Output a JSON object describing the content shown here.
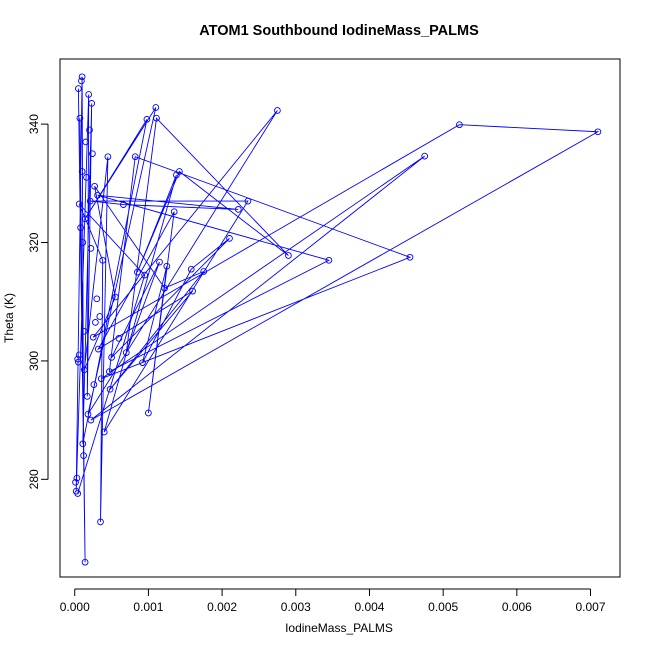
{
  "chart_data": {
    "type": "line",
    "title": "ATOM1 Southbound IodineMass_PALMS",
    "xlabel": "IodineMass_PALMS",
    "ylabel": "Theta (K)",
    "x_ticks": [
      "0.000",
      "0.001",
      "0.002",
      "0.003",
      "0.004",
      "0.005",
      "0.006",
      "0.007"
    ],
    "x_tick_values": [
      0,
      0.001,
      0.002,
      0.003,
      0.004,
      0.005,
      0.006,
      0.007
    ],
    "y_ticks": [
      "280",
      "300",
      "320",
      "340"
    ],
    "y_tick_values": [
      280,
      300,
      320,
      340
    ],
    "xlim": [
      -0.0002,
      0.0074
    ],
    "ylim": [
      263.5,
      351
    ],
    "grid": false,
    "legend": "none",
    "colors": {
      "series": "#0000ff",
      "axis": "#000000",
      "background": "#ffffff"
    },
    "series": [
      {
        "marker": "open-circle",
        "line": true,
        "points": [
          [
            2e-05,
            278.0
          ],
          [
            1e-05,
            279.5
          ],
          [
            3e-05,
            280.2
          ],
          [
            4e-05,
            277.6
          ],
          [
            5e-05,
            299.8
          ],
          [
            4e-05,
            300.3
          ],
          [
            6e-05,
            301.0
          ],
          [
            5e-05,
            346.0
          ],
          [
            7e-05,
            341.0
          ],
          [
            6e-05,
            326.5
          ],
          [
            8e-05,
            322.5
          ],
          [
            0.0001,
            348.0
          ],
          [
            9e-05,
            347.3
          ],
          [
            0.00011,
            320.0
          ],
          [
            0.0001,
            332.0
          ],
          [
            0.00012,
            284.0
          ],
          [
            0.00011,
            286.0
          ],
          [
            0.00013,
            298.5
          ],
          [
            0.00013,
            305.0
          ],
          [
            0.00014,
            324.0
          ],
          [
            0.00015,
            337.0
          ],
          [
            0.00016,
            331.0
          ],
          [
            0.00014,
            266.0
          ],
          [
            0.00017,
            294.0
          ],
          [
            0.00018,
            291.0
          ],
          [
            0.00019,
            345.0
          ],
          [
            0.0002,
            339.0
          ],
          [
            0.00021,
            327.0
          ],
          [
            0.00022,
            319.0
          ],
          [
            0.00023,
            343.5
          ],
          [
            0.00024,
            335.0
          ],
          [
            0.00022,
            290.0
          ],
          [
            0.00025,
            304.0
          ],
          [
            0.00026,
            296.0
          ],
          [
            0.00027,
            329.5
          ],
          [
            0.00028,
            306.5
          ],
          [
            0.0003,
            310.5
          ],
          [
            0.00031,
            328.0
          ],
          [
            0.00032,
            302.0
          ],
          [
            0.00034,
            307.5
          ],
          [
            0.00035,
            272.8
          ],
          [
            0.00036,
            297.0
          ],
          [
            0.00038,
            317.0
          ],
          [
            0.0004,
            288.0
          ],
          [
            0.00045,
            334.5
          ],
          [
            0.00047,
            298.2
          ],
          [
            0.00048,
            295.2
          ],
          [
            0.0005,
            300.6
          ],
          [
            0.00055,
            310.8
          ],
          [
            0.0006,
            303.8
          ],
          [
            0.00066,
            326.4
          ],
          [
            0.0007,
            301.4
          ],
          [
            0.00082,
            334.5
          ],
          [
            0.00085,
            315.0
          ],
          [
            0.00092,
            299.7
          ],
          [
            0.00095,
            314.5
          ],
          [
            0.00098,
            340.8
          ],
          [
            0.001,
            291.2
          ],
          [
            0.0011,
            342.8
          ],
          [
            0.00111,
            341.0
          ],
          [
            0.00115,
            316.7
          ],
          [
            0.00122,
            312.3
          ],
          [
            0.00125,
            316.0
          ],
          [
            0.00135,
            325.2
          ],
          [
            0.00138,
            331.4
          ],
          [
            0.00142,
            332.0
          ],
          [
            0.00158,
            315.5
          ],
          [
            0.0016,
            311.8
          ],
          [
            0.00175,
            315.1
          ],
          [
            0.0021,
            320.7
          ],
          [
            0.00222,
            325.6
          ],
          [
            0.00235,
            327.0
          ],
          [
            0.00275,
            342.3
          ],
          [
            0.0029,
            317.8
          ],
          [
            0.00345,
            317.0
          ],
          [
            0.00455,
            317.5
          ],
          [
            0.00475,
            334.6
          ],
          [
            0.00522,
            339.9
          ],
          [
            0.0071,
            338.7
          ]
        ],
        "path": [
          [
            5e-05,
            346.0
          ],
          [
            0.00014,
            266.0
          ],
          [
            7e-05,
            341.0
          ],
          [
            0.00012,
            284.0
          ],
          [
            0.0001,
            348.0
          ],
          [
            2e-05,
            278.0
          ],
          [
            0.00019,
            345.0
          ],
          [
            0.00017,
            294.0
          ],
          [
            0.00023,
            343.5
          ],
          [
            0.00011,
            286.0
          ],
          [
            0.00098,
            340.8
          ],
          [
            0.00014,
            324.0
          ],
          [
            0.0011,
            342.8
          ],
          [
            0.00018,
            291.0
          ],
          [
            0.00275,
            342.3
          ],
          [
            0.00025,
            304.0
          ],
          [
            0.00522,
            339.9
          ],
          [
            0.0071,
            338.7
          ],
          [
            0.00022,
            290.0
          ],
          [
            0.00475,
            334.6
          ],
          [
            0.00036,
            297.0
          ],
          [
            0.00455,
            317.5
          ],
          [
            0.00082,
            334.5
          ],
          [
            0.00047,
            298.2
          ],
          [
            0.00345,
            317.0
          ],
          [
            0.00031,
            328.0
          ],
          [
            0.00222,
            325.6
          ],
          [
            0.00066,
            326.4
          ],
          [
            0.00021,
            327.0
          ],
          [
            0.00235,
            327.0
          ],
          [
            0.0004,
            288.0
          ],
          [
            0.00138,
            331.4
          ],
          [
            0.00085,
            315.0
          ],
          [
            0.00142,
            332.0
          ],
          [
            0.0029,
            317.8
          ],
          [
            0.00111,
            341.0
          ],
          [
            0.0007,
            301.4
          ],
          [
            0.00115,
            316.7
          ],
          [
            0.0005,
            300.6
          ],
          [
            0.0021,
            320.7
          ],
          [
            0.00158,
            315.5
          ],
          [
            0.00092,
            299.7
          ],
          [
            0.00125,
            316.0
          ],
          [
            0.001,
            291.2
          ],
          [
            0.00135,
            325.2
          ],
          [
            0.00032,
            302.0
          ],
          [
            0.0016,
            311.8
          ],
          [
            0.00048,
            295.2
          ],
          [
            0.00175,
            315.1
          ],
          [
            0.00122,
            312.3
          ],
          [
            0.00027,
            329.5
          ],
          [
            0.00055,
            310.8
          ],
          [
            0.00013,
            298.5
          ],
          [
            0.00045,
            334.5
          ],
          [
            0.00035,
            272.8
          ],
          [
            0.00038,
            317.0
          ],
          [
            6e-05,
            326.5
          ],
          [
            0.00095,
            314.5
          ],
          [
            4e-05,
            277.6
          ]
        ]
      }
    ]
  }
}
